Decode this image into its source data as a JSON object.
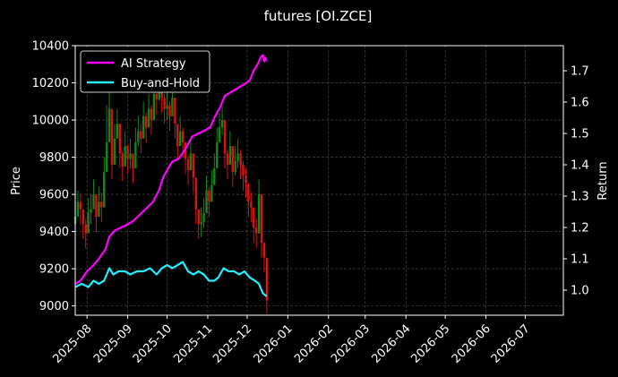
{
  "chart_data": {
    "type": "line",
    "title": "futures [OI.ZCE]",
    "ylabel_left": "Price",
    "ylabel_right": "Return",
    "x_range": [
      "2025-07-23",
      "2026-07-30"
    ],
    "x_ticks": [
      "2025-08",
      "2025-09",
      "2025-10",
      "2025-11",
      "2025-12",
      "2026-01",
      "2026-02",
      "2026-03",
      "2026-04",
      "2026-05",
      "2026-06",
      "2026-07"
    ],
    "y_left_range": [
      8950,
      10400
    ],
    "y_left_ticks": [
      9000,
      9200,
      9400,
      9600,
      9800,
      10000,
      10200,
      10400
    ],
    "y_right_range": [
      0.92,
      1.78
    ],
    "y_right_ticks": [
      1.0,
      1.1,
      1.2,
      1.3,
      1.4,
      1.5,
      1.6,
      1.7
    ],
    "grid": true,
    "legend_position": "top-left",
    "series": [
      {
        "name": "AI Strategy",
        "color": "#ff00ff",
        "axis": "right",
        "x": [
          "2025-07-23",
          "2025-07-27",
          "2025-08-01",
          "2025-08-06",
          "2025-08-10",
          "2025-08-15",
          "2025-08-18",
          "2025-08-22",
          "2025-08-27",
          "2025-09-01",
          "2025-09-05",
          "2025-09-10",
          "2025-09-15",
          "2025-09-20",
          "2025-09-25",
          "2025-09-28",
          "2025-10-02",
          "2025-10-05",
          "2025-10-10",
          "2025-10-15",
          "2025-10-20",
          "2025-10-25",
          "2025-10-30",
          "2025-11-03",
          "2025-11-06",
          "2025-11-10",
          "2025-11-14",
          "2025-11-18",
          "2025-11-22",
          "2025-11-26",
          "2025-11-30",
          "2025-12-03",
          "2025-12-06",
          "2025-12-09",
          "2025-12-11",
          "2025-12-13",
          "2025-12-14",
          "2025-12-15",
          "2025-12-16"
        ],
        "values": [
          1.02,
          1.03,
          1.06,
          1.08,
          1.1,
          1.13,
          1.17,
          1.19,
          1.2,
          1.21,
          1.22,
          1.24,
          1.26,
          1.28,
          1.32,
          1.36,
          1.39,
          1.41,
          1.42,
          1.45,
          1.49,
          1.5,
          1.51,
          1.52,
          1.55,
          1.58,
          1.62,
          1.63,
          1.64,
          1.65,
          1.66,
          1.67,
          1.7,
          1.72,
          1.74,
          1.75,
          1.73,
          1.74,
          1.73
        ]
      },
      {
        "name": "Buy-and-Hold",
        "color": "#22eeff",
        "axis": "right",
        "x": [
          "2025-07-23",
          "2025-07-28",
          "2025-08-02",
          "2025-08-06",
          "2025-08-10",
          "2025-08-14",
          "2025-08-18",
          "2025-08-21",
          "2025-08-25",
          "2025-08-30",
          "2025-09-03",
          "2025-09-08",
          "2025-09-13",
          "2025-09-18",
          "2025-09-23",
          "2025-09-27",
          "2025-10-01",
          "2025-10-05",
          "2025-10-09",
          "2025-10-13",
          "2025-10-17",
          "2025-10-21",
          "2025-10-25",
          "2025-10-29",
          "2025-11-02",
          "2025-11-06",
          "2025-11-09",
          "2025-11-13",
          "2025-11-17",
          "2025-11-21",
          "2025-11-25",
          "2025-11-29",
          "2025-12-03",
          "2025-12-07",
          "2025-12-10",
          "2025-12-13",
          "2025-12-16"
        ],
        "values": [
          1.01,
          1.02,
          1.01,
          1.03,
          1.02,
          1.03,
          1.07,
          1.05,
          1.06,
          1.06,
          1.05,
          1.06,
          1.06,
          1.07,
          1.05,
          1.07,
          1.08,
          1.07,
          1.08,
          1.09,
          1.06,
          1.05,
          1.06,
          1.05,
          1.03,
          1.03,
          1.04,
          1.07,
          1.06,
          1.06,
          1.05,
          1.06,
          1.04,
          1.03,
          1.02,
          0.99,
          0.98
        ]
      }
    ],
    "price_candles": {
      "up_color": "#118811",
      "down_color": "#dd1111",
      "dates": [
        "2025-07-23",
        "2025-07-25",
        "2025-07-27",
        "2025-07-29",
        "2025-07-31",
        "2025-08-02",
        "2025-08-04",
        "2025-08-06",
        "2025-08-08",
        "2025-08-10",
        "2025-08-12",
        "2025-08-14",
        "2025-08-16",
        "2025-08-18",
        "2025-08-20",
        "2025-08-22",
        "2025-08-24",
        "2025-08-26",
        "2025-08-28",
        "2025-08-30",
        "2025-09-01",
        "2025-09-03",
        "2025-09-05",
        "2025-09-07",
        "2025-09-09",
        "2025-09-11",
        "2025-09-13",
        "2025-09-15",
        "2025-09-17",
        "2025-09-19",
        "2025-09-21",
        "2025-09-23",
        "2025-09-25",
        "2025-09-27",
        "2025-09-29",
        "2025-10-01",
        "2025-10-03",
        "2025-10-05",
        "2025-10-07",
        "2025-10-09",
        "2025-10-11",
        "2025-10-13",
        "2025-10-15",
        "2025-10-17",
        "2025-10-19",
        "2025-10-21",
        "2025-10-23",
        "2025-10-25",
        "2025-10-27",
        "2025-10-29",
        "2025-10-31",
        "2025-11-02",
        "2025-11-04",
        "2025-11-06",
        "2025-11-08",
        "2025-11-10",
        "2025-11-12",
        "2025-11-14",
        "2025-11-16",
        "2025-11-18",
        "2025-11-20",
        "2025-11-22",
        "2025-11-24",
        "2025-11-26",
        "2025-11-28",
        "2025-11-30",
        "2025-12-02",
        "2025-12-04",
        "2025-12-06",
        "2025-12-08",
        "2025-12-10",
        "2025-12-12",
        "2025-12-14",
        "2025-12-16"
      ],
      "close": [
        9480,
        9560,
        9520,
        9440,
        9390,
        9500,
        9520,
        9600,
        9480,
        9560,
        9530,
        9720,
        9880,
        10060,
        9760,
        9900,
        9980,
        9820,
        9750,
        9860,
        9790,
        9820,
        9740,
        9880,
        9940,
        9900,
        10020,
        9960,
        10060,
        10000,
        10140,
        10110,
        10180,
        10120,
        10060,
        10080,
        10020,
        10120,
        9980,
        9860,
        9940,
        9880,
        9790,
        9730,
        9820,
        9690,
        9520,
        9440,
        9450,
        9500,
        9620,
        9560,
        9650,
        9740,
        9880,
        9960,
        10000,
        9820,
        9760,
        9860,
        9720,
        9780,
        9820,
        9760,
        9700,
        9660,
        9560,
        9530,
        9420,
        9390,
        9600,
        9340,
        9260,
        9030
      ],
      "high": [
        9560,
        9620,
        9600,
        9520,
        9470,
        9580,
        9600,
        9680,
        9560,
        9640,
        9610,
        9800,
        10080,
        10200,
        9860,
        9980,
        10060,
        9900,
        9830,
        9940,
        9870,
        9900,
        9820,
        9960,
        10020,
        9980,
        10100,
        10040,
        10140,
        10080,
        10220,
        10190,
        10260,
        10200,
        10140,
        10160,
        10100,
        10200,
        10060,
        9940,
        10020,
        9960,
        9870,
        9810,
        9900,
        9770,
        9600,
        9520,
        9530,
        9580,
        9700,
        9640,
        9730,
        9820,
        9960,
        10040,
        10080,
        9900,
        9840,
        9940,
        9800,
        9860,
        9900,
        9840,
        9780,
        9740,
        9640,
        9610,
        9500,
        9470,
        9680,
        9420,
        9340,
        9110
      ],
      "low": [
        9400,
        9480,
        9440,
        9360,
        9310,
        9420,
        9440,
        9520,
        9400,
        9480,
        9450,
        9640,
        9720,
        9900,
        9680,
        9820,
        9900,
        9740,
        9670,
        9780,
        9710,
        9740,
        9660,
        9800,
        9860,
        9820,
        9940,
        9880,
        9980,
        9920,
        10060,
        10030,
        10100,
        10040,
        9980,
        10000,
        9940,
        10040,
        9900,
        9780,
        9860,
        9800,
        9710,
        9650,
        9740,
        9610,
        9440,
        9360,
        9370,
        9420,
        9540,
        9480,
        9570,
        9660,
        9800,
        9880,
        9920,
        9740,
        9680,
        9780,
        9640,
        9700,
        9740,
        9680,
        9620,
        9580,
        9480,
        9450,
        9340,
        9310,
        9520,
        9260,
        9180,
        8960
      ]
    }
  }
}
